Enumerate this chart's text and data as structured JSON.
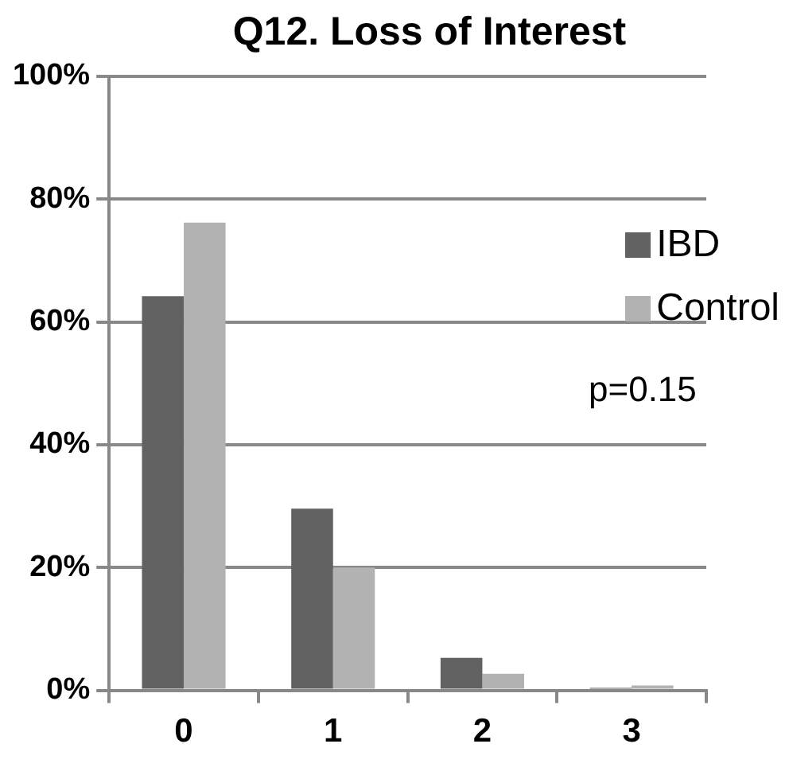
{
  "chart_data": {
    "type": "bar",
    "title": "Q12. Loss of Interest",
    "categories": [
      "0",
      "1",
      "2",
      "3"
    ],
    "series": [
      {
        "name": "IBD",
        "color": "#626262",
        "values": [
          64.2,
          29.6,
          5.3,
          0.4
        ]
      },
      {
        "name": "Control",
        "color": "#b2b2b2",
        "values": [
          76.2,
          20,
          2.7,
          0.8
        ]
      }
    ],
    "ylim": [
      0,
      100
    ],
    "yticks": [
      {
        "value": 0,
        "label": "0%"
      },
      {
        "value": 20,
        "label": "20%"
      },
      {
        "value": 40,
        "label": "40%"
      },
      {
        "value": 60,
        "label": "60%"
      },
      {
        "value": 80,
        "label": "80%"
      },
      {
        "value": 100,
        "label": "100%"
      }
    ],
    "grid": "y",
    "legend": "right",
    "annotations": [
      "p=0.15"
    ]
  }
}
